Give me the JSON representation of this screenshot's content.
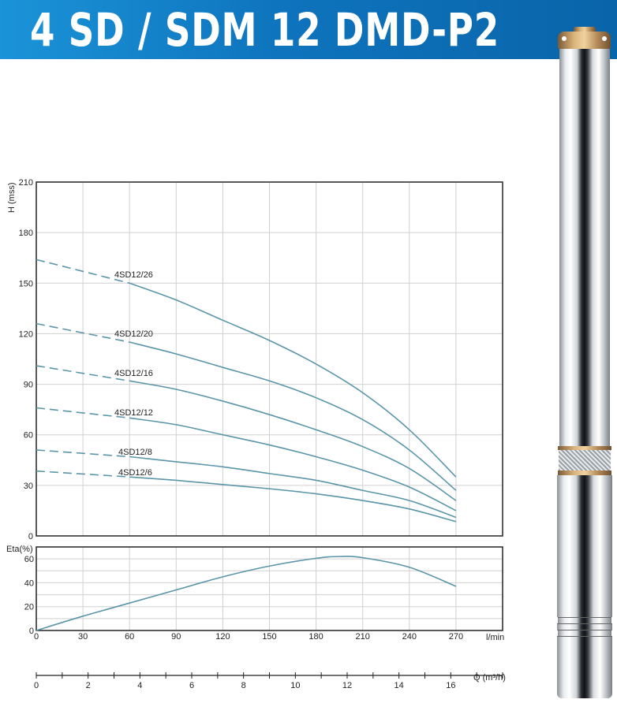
{
  "header": {
    "title": "4 SD / SDM 12 DMD-P2"
  },
  "colors": {
    "title_bar": "#0e74bd",
    "curve": "#5a95a8",
    "grid": "#d0d0d0",
    "frame": "#222222"
  },
  "product_image": {
    "icon": "submersible-pump-icon"
  },
  "chart_data": [
    {
      "type": "line",
      "ylabel": "H (mss)",
      "xlabel": "l/min",
      "xlim": [
        0,
        300
      ],
      "ylim": [
        0,
        210
      ],
      "xticks": [
        0,
        30,
        60,
        90,
        120,
        150,
        180,
        210,
        240,
        270
      ],
      "yticks": [
        0,
        30,
        60,
        90,
        120,
        150,
        180,
        210
      ],
      "grid": true,
      "dashed_below_x": 60,
      "series": [
        {
          "name": "4SD12/26",
          "x": [
            0,
            60,
            90,
            120,
            150,
            180,
            210,
            240,
            270
          ],
          "y": [
            164,
            150,
            140,
            128,
            116,
            102,
            85,
            63,
            35
          ]
        },
        {
          "name": "4SD12/20",
          "x": [
            0,
            60,
            90,
            120,
            150,
            180,
            210,
            240,
            270
          ],
          "y": [
            126,
            115,
            108,
            100,
            92,
            82,
            69,
            51,
            27
          ]
        },
        {
          "name": "4SD12/16",
          "x": [
            0,
            60,
            90,
            120,
            150,
            180,
            210,
            240,
            270
          ],
          "y": [
            101,
            92,
            87,
            80,
            72,
            63,
            53,
            40,
            21
          ]
        },
        {
          "name": "4SD12/12",
          "x": [
            0,
            60,
            90,
            120,
            150,
            180,
            210,
            240,
            270
          ],
          "y": [
            76,
            70,
            66,
            60,
            54,
            47,
            39,
            29,
            15
          ]
        },
        {
          "name": "4SD12/8",
          "x": [
            0,
            60,
            90,
            120,
            150,
            180,
            210,
            240,
            270
          ],
          "y": [
            51,
            47,
            44,
            41,
            37,
            33,
            27,
            21,
            11
          ]
        },
        {
          "name": "4SD12/6",
          "x": [
            0,
            60,
            90,
            120,
            150,
            180,
            210,
            240,
            270
          ],
          "y": [
            38.5,
            35,
            33,
            30.5,
            28,
            25,
            21,
            16,
            8.5
          ]
        }
      ]
    },
    {
      "type": "line",
      "ylabel": "Eta(%)",
      "xlabel": "l/min",
      "x2label": "Q (m³/h)",
      "xlim": [
        0,
        300
      ],
      "ylim": [
        0,
        70
      ],
      "xticks": [
        0,
        30,
        60,
        90,
        120,
        150,
        180,
        210,
        240,
        270
      ],
      "x2ticks": [
        0,
        2,
        4,
        6,
        8,
        10,
        12,
        14,
        16
      ],
      "yticks": [
        0,
        20,
        40,
        60
      ],
      "grid": true,
      "series": [
        {
          "x": [
            0,
            30,
            60,
            90,
            120,
            150,
            180,
            195,
            210,
            240,
            270
          ],
          "y": [
            0,
            12,
            23,
            34,
            45,
            54,
            60.5,
            62,
            61,
            53,
            37
          ]
        }
      ]
    }
  ]
}
